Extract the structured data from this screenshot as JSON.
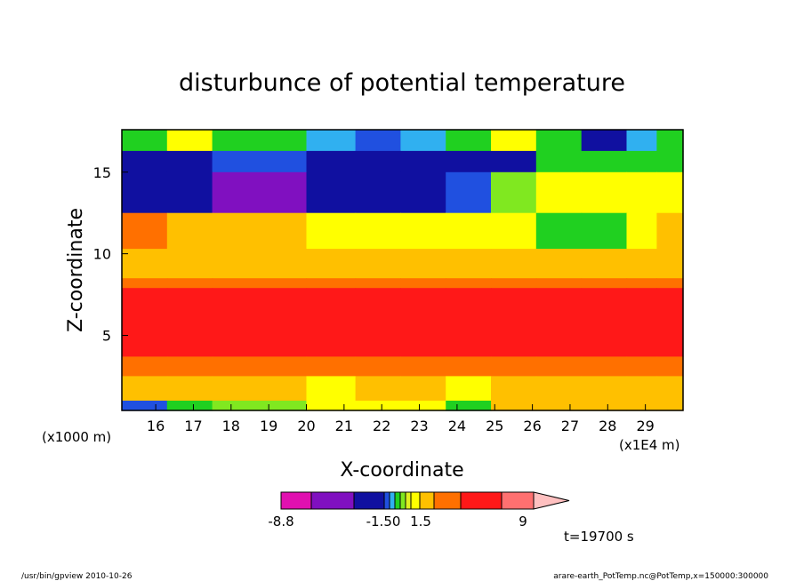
{
  "chart_data": {
    "type": "heatmap",
    "title": "disturbunce of potential temperature",
    "xlabel": "X-coordinate",
    "ylabel": "Z-coordinate",
    "x_unit_left": "(x1000 m)",
    "x_unit_right": "(x1E4 m)",
    "xlim": [
      15.1,
      30.0
    ],
    "ylim": [
      0.4,
      17.6
    ],
    "x_ticks": [
      "16",
      "17",
      "18",
      "19",
      "20",
      "21",
      "22",
      "23",
      "24",
      "25",
      "26",
      "27",
      "28",
      "29"
    ],
    "y_ticks": [
      "5",
      "10",
      "15"
    ],
    "colorbar": {
      "colors": [
        "#e010b0",
        "#8010c0",
        "#1010a0",
        "#2050e0",
        "#30b0f0",
        "#20d020",
        "#80e820",
        "#e0f020",
        "#ffff00",
        "#ffc000",
        "#ff7000",
        "#ff1818",
        "#ff7070",
        "#ffc0c0"
      ],
      "labels": [
        "-8.8",
        "-1.50",
        "1.5",
        "9"
      ]
    },
    "time_label": "t=19700 s",
    "rows": [
      {
        "z": [
          16.3,
          17.6
        ],
        "colors": [
          "#20d020",
          "#ffff00",
          "#20d020",
          "#30b0f0",
          "#2050e0",
          "#30b0f0",
          "#20d020",
          "#ffff00",
          "#20d020",
          "#1010a0",
          "#30b0f0",
          "#20d020"
        ]
      },
      {
        "z": [
          15.0,
          16.3
        ],
        "colors": [
          "#1010a0",
          "#1010a0",
          "#2050e0",
          "#1010a0",
          "#1010a0",
          "#1010a0",
          "#1010a0",
          "#1010a0",
          "#20d020",
          "#20d020",
          "#20d020",
          "#20d020"
        ]
      },
      {
        "z": [
          12.5,
          15.0
        ],
        "colors": [
          "#1010a0",
          "#1010a0",
          "#8010c0",
          "#1010a0",
          "#1010a0",
          "#1010a0",
          "#2050e0",
          "#80e820",
          "#ffff00",
          "#ffff00",
          "#ffff00",
          "#ffff00"
        ]
      },
      {
        "z": [
          10.3,
          12.5
        ],
        "colors": [
          "#ff7000",
          "#ffc000",
          "#ffc000",
          "#ffff00",
          "#ffff00",
          "#ffff00",
          "#ffff00",
          "#ffff00",
          "#20d020",
          "#20d020",
          "#ffff00",
          "#ffc000"
        ]
      },
      {
        "z": [
          8.5,
          10.3
        ],
        "colors": [
          "#ffc000",
          "#ffc000",
          "#ffc000",
          "#ffc000",
          "#ffc000",
          "#ffc000",
          "#ffc000",
          "#ffc000",
          "#ffc000",
          "#ffc000",
          "#ffc000",
          "#ffc000"
        ]
      },
      {
        "z": [
          7.9,
          8.5
        ],
        "colors": [
          "#ff7000",
          "#ff7000",
          "#ff7000",
          "#ff7000",
          "#ff7000",
          "#ff7000",
          "#ff7000",
          "#ff7000",
          "#ff7000",
          "#ff7000",
          "#ff7000",
          "#ff7000"
        ]
      },
      {
        "z": [
          3.7,
          7.9
        ],
        "colors": [
          "#ff1818",
          "#ff1818",
          "#ff1818",
          "#ff1818",
          "#ff1818",
          "#ff1818",
          "#ff1818",
          "#ff1818",
          "#ff1818",
          "#ff1818",
          "#ff1818",
          "#ff1818"
        ]
      },
      {
        "z": [
          2.5,
          3.7
        ],
        "colors": [
          "#ff7000",
          "#ff7000",
          "#ff7000",
          "#ff7000",
          "#ff7000",
          "#ff7000",
          "#ff7000",
          "#ff7000",
          "#ff7000",
          "#ff7000",
          "#ff7000",
          "#ff7000"
        ]
      },
      {
        "z": [
          1.0,
          2.5
        ],
        "colors": [
          "#ffc000",
          "#ffc000",
          "#ffc000",
          "#ffff00",
          "#ffc000",
          "#ffc000",
          "#ffff00",
          "#ffc000",
          "#ffc000",
          "#ffc000",
          "#ffc000",
          "#ffc000"
        ]
      },
      {
        "z": [
          0.4,
          1.0
        ],
        "colors": [
          "#2050e0",
          "#20d020",
          "#80e820",
          "#ffff00",
          "#ffff00",
          "#ffff00",
          "#20d020",
          "#ffc000",
          "#ffc000",
          "#ffc000",
          "#ffc000",
          "#ffc000"
        ]
      }
    ],
    "columns_x": [
      [
        15.1,
        16.3
      ],
      [
        16.3,
        17.5
      ],
      [
        17.5,
        20.0
      ],
      [
        20.0,
        21.3
      ],
      [
        21.3,
        22.5
      ],
      [
        22.5,
        23.7
      ],
      [
        23.7,
        24.9
      ],
      [
        24.9,
        26.1
      ],
      [
        26.1,
        27.3
      ],
      [
        27.3,
        28.5
      ],
      [
        28.5,
        29.3
      ],
      [
        29.3,
        30.0
      ]
    ]
  },
  "footer": {
    "left": "/usr/bin/gpview   2010-10-26",
    "right": "arare-earth_PotTemp.nc@PotTemp,x=150000:300000"
  }
}
